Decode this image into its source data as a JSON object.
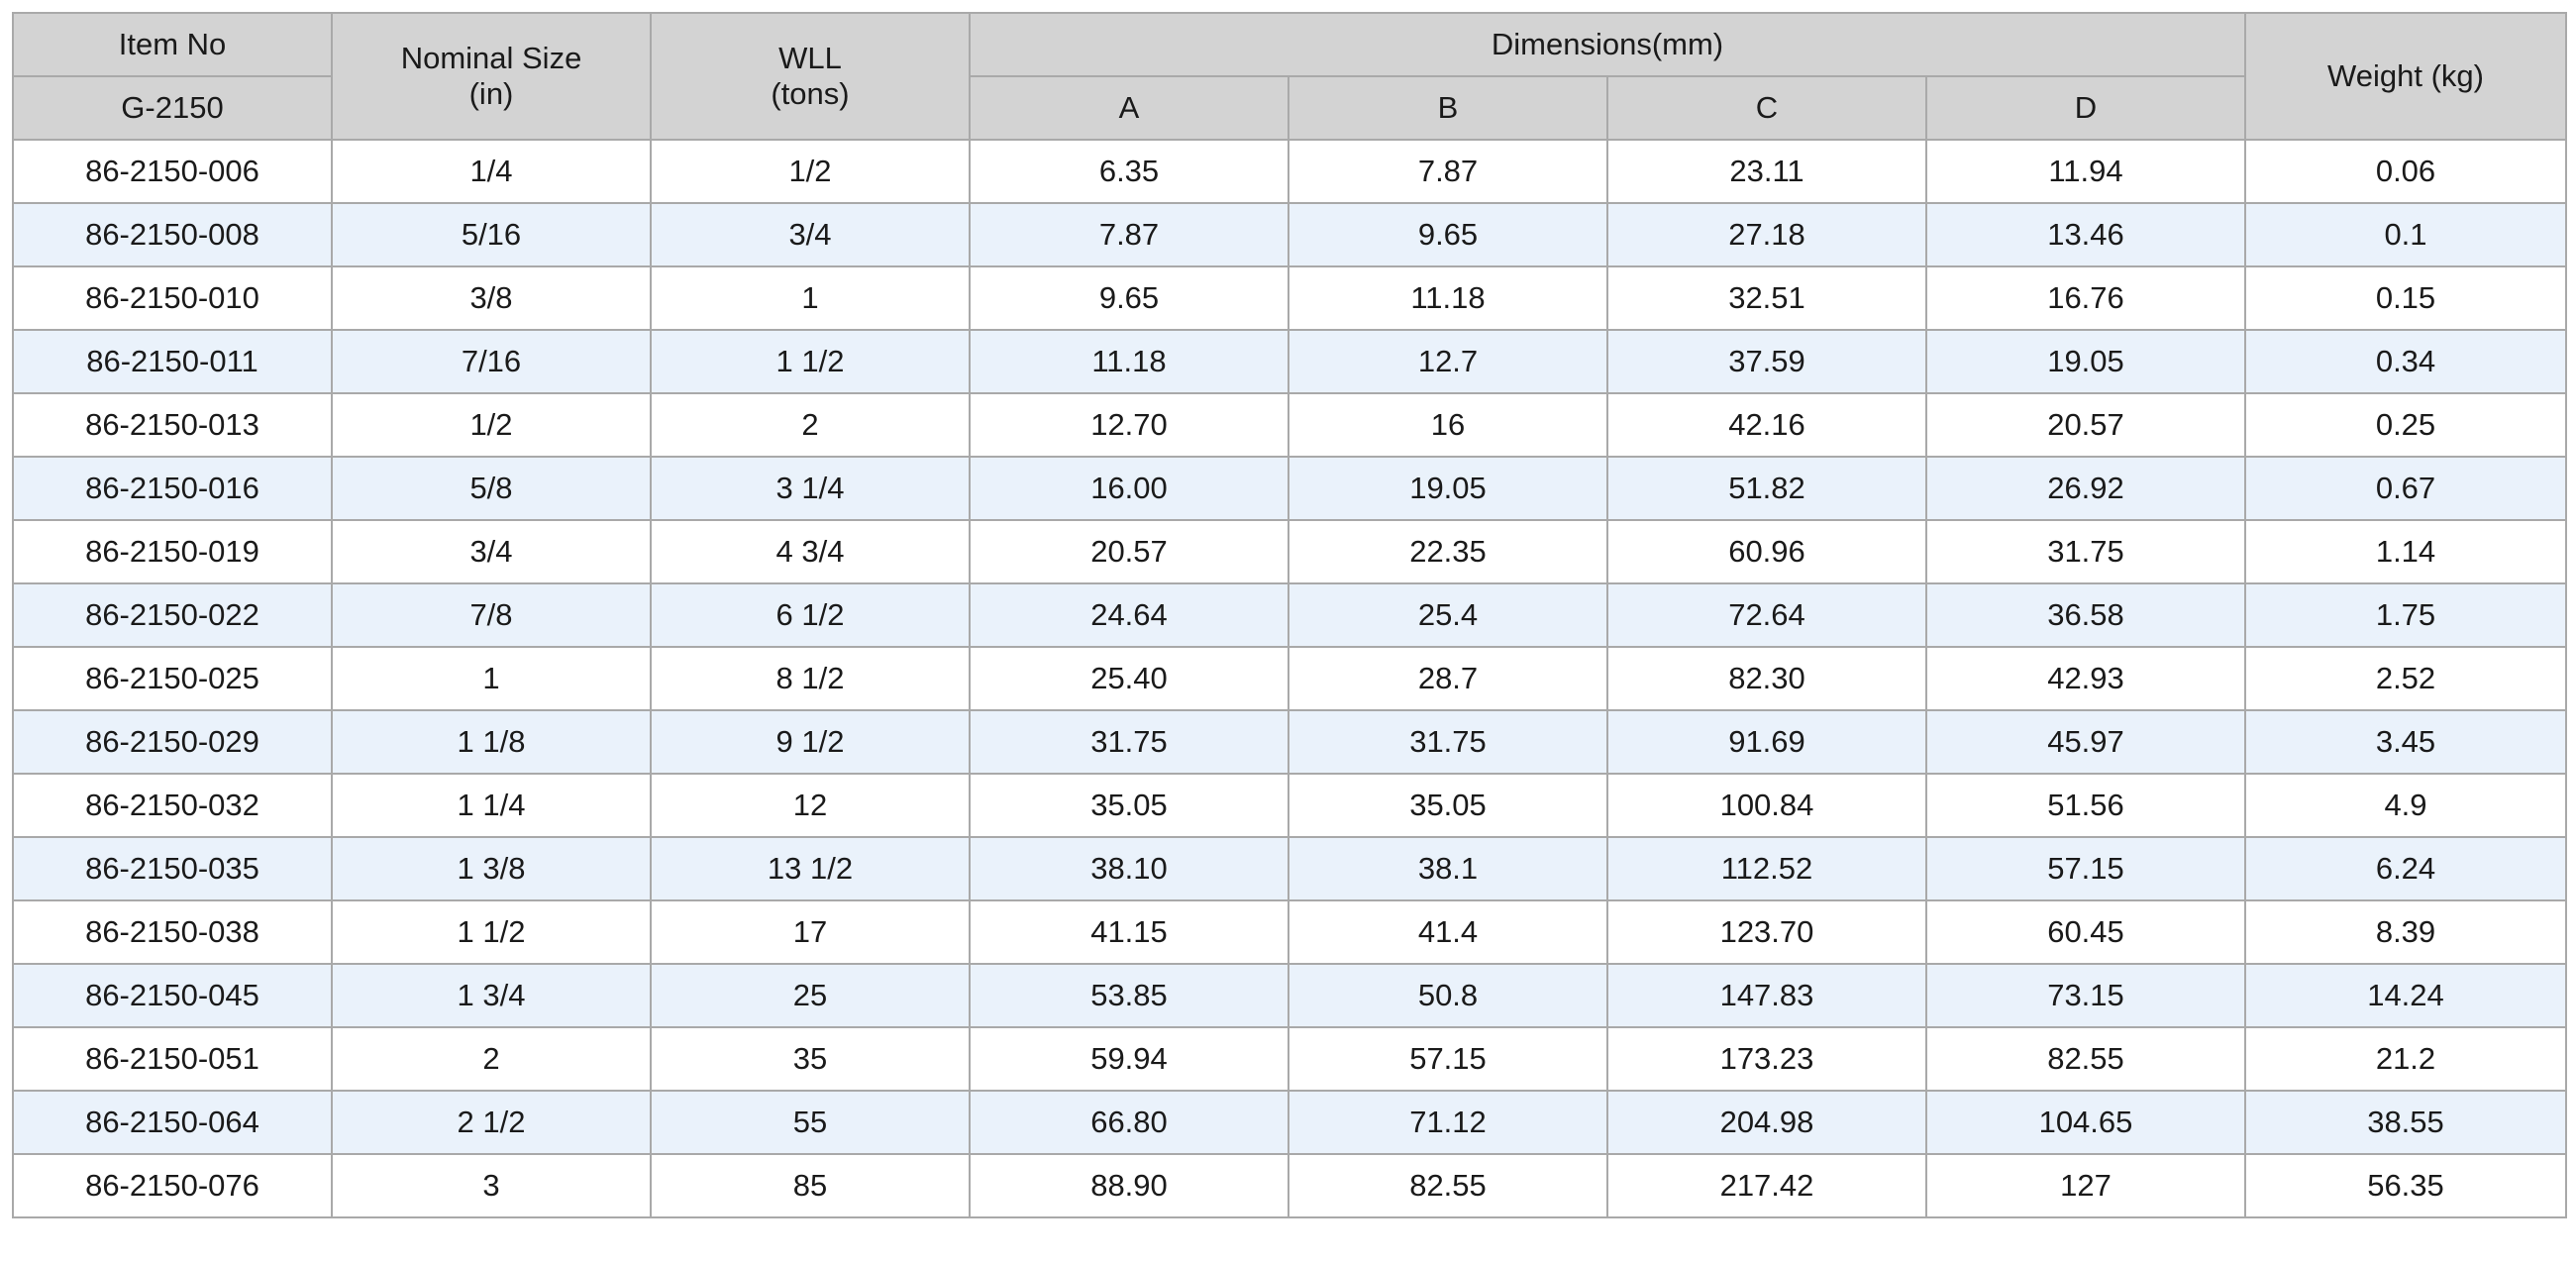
{
  "header": {
    "item_no": "Item No",
    "item_code": "G-2150",
    "nominal_size_line1": "Nominal Size",
    "nominal_size_line2": "(in)",
    "wll_line1": "WLL",
    "wll_line2": "(tons)",
    "dimensions": "Dimensions(mm)",
    "dim_a": "A",
    "dim_b": "B",
    "dim_c": "C",
    "dim_d": "D",
    "weight": "Weight (kg)"
  },
  "rows": [
    [
      "86-2150-006",
      "1/4",
      "1/2",
      "6.35",
      "7.87",
      "23.11",
      "11.94",
      "0.06"
    ],
    [
      "86-2150-008",
      "5/16",
      "3/4",
      "7.87",
      "9.65",
      "27.18",
      "13.46",
      "0.1"
    ],
    [
      "86-2150-010",
      "3/8",
      "1",
      "9.65",
      "11.18",
      "32.51",
      "16.76",
      "0.15"
    ],
    [
      "86-2150-011",
      "7/16",
      "1 1/2",
      "11.18",
      "12.7",
      "37.59",
      "19.05",
      "0.34"
    ],
    [
      "86-2150-013",
      "1/2",
      "2",
      "12.70",
      "16",
      "42.16",
      "20.57",
      "0.25"
    ],
    [
      "86-2150-016",
      "5/8",
      "3 1/4",
      "16.00",
      "19.05",
      "51.82",
      "26.92",
      "0.67"
    ],
    [
      "86-2150-019",
      "3/4",
      "4 3/4",
      "20.57",
      "22.35",
      "60.96",
      "31.75",
      "1.14"
    ],
    [
      "86-2150-022",
      "7/8",
      "6 1/2",
      "24.64",
      "25.4",
      "72.64",
      "36.58",
      "1.75"
    ],
    [
      "86-2150-025",
      "1",
      "8 1/2",
      "25.40",
      "28.7",
      "82.30",
      "42.93",
      "2.52"
    ],
    [
      "86-2150-029",
      "1 1/8",
      "9 1/2",
      "31.75",
      "31.75",
      "91.69",
      "45.97",
      "3.45"
    ],
    [
      "86-2150-032",
      "1 1/4",
      "12",
      "35.05",
      "35.05",
      "100.84",
      "51.56",
      "4.9"
    ],
    [
      "86-2150-035",
      "1 3/8",
      "13 1/2",
      "38.10",
      "38.1",
      "112.52",
      "57.15",
      "6.24"
    ],
    [
      "86-2150-038",
      "1 1/2",
      "17",
      "41.15",
      "41.4",
      "123.70",
      "60.45",
      "8.39"
    ],
    [
      "86-2150-045",
      "1 3/4",
      "25",
      "53.85",
      "50.8",
      "147.83",
      "73.15",
      "14.24"
    ],
    [
      "86-2150-051",
      "2",
      "35",
      "59.94",
      "57.15",
      "173.23",
      "82.55",
      "21.2"
    ],
    [
      "86-2150-064",
      "2 1/2",
      "55",
      "66.80",
      "71.12",
      "204.98",
      "104.65",
      "38.55"
    ],
    [
      "86-2150-076",
      "3",
      "85",
      "88.90",
      "82.55",
      "217.42",
      "127",
      "56.35"
    ]
  ]
}
